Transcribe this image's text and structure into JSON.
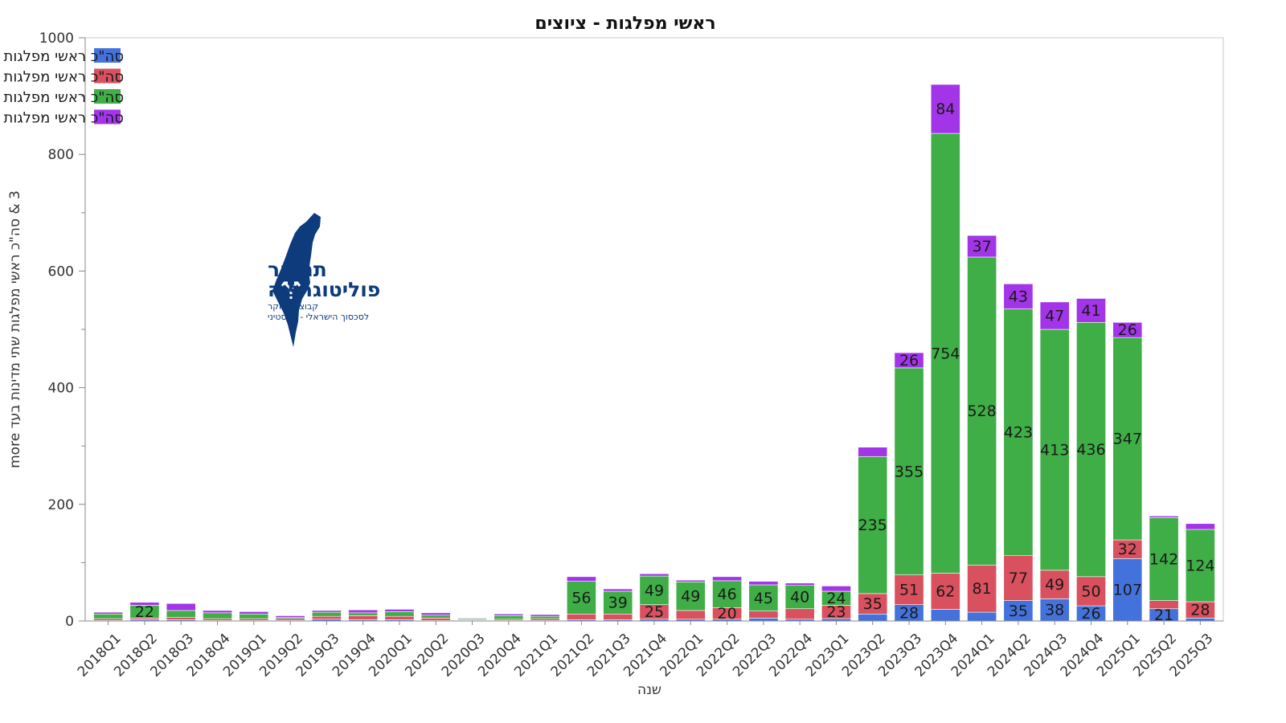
{
  "chart_data": {
    "type": "bar",
    "stacked": true,
    "title": "ראשי מפלגות - ציוצים",
    "xlabel": "שנה",
    "ylabel": "3 & סה\"כ ראשי מפלגות שתי מדינות בעד more",
    "ylim": [
      0,
      1000
    ],
    "yticks": [
      0,
      200,
      400,
      600,
      800,
      1000
    ],
    "grid": false,
    "legend_position": "top-left",
    "categories": [
      "2018Q1",
      "2018Q2",
      "2018Q3",
      "2018Q4",
      "2019Q1",
      "2019Q2",
      "2019Q3",
      "2019Q4",
      "2020Q1",
      "2020Q2",
      "2020Q3",
      "2020Q4",
      "2021Q1",
      "2021Q2",
      "2021Q3",
      "2021Q4",
      "2022Q1",
      "2022Q2",
      "2022Q3",
      "2022Q4",
      "2023Q1",
      "2023Q2",
      "2023Q3",
      "2023Q4",
      "2024Q1",
      "2024Q2",
      "2024Q3",
      "2024Q4",
      "2025Q1",
      "2025Q2",
      "2025Q3"
    ],
    "series": [
      {
        "name": "סה\"כ ראשי מפלגות שתי מדינות בעד",
        "color": "#4472dc",
        "values": [
          1,
          2,
          2,
          1,
          1,
          1,
          3,
          2,
          2,
          1,
          1,
          1,
          1,
          2,
          2,
          3,
          3,
          3,
          5,
          3,
          4,
          12,
          28,
          20,
          15,
          35,
          38,
          26,
          107,
          21,
          5
        ]
      },
      {
        "name": "סה\"כ ראשי מפלגות סיפוח בעד",
        "color": "#d9505e",
        "values": [
          3,
          3,
          4,
          3,
          3,
          3,
          5,
          7,
          6,
          4,
          1,
          2,
          3,
          10,
          10,
          25,
          15,
          20,
          12,
          18,
          23,
          35,
          51,
          62,
          81,
          77,
          49,
          50,
          32,
          14,
          28
        ]
      },
      {
        "name": "סה\"כ ראשי מפלגות סטטוס קוו בעד",
        "color": "#3fae47",
        "values": [
          8,
          22,
          12,
          10,
          8,
          2,
          7,
          5,
          8,
          5,
          2,
          6,
          4,
          56,
          39,
          49,
          49,
          46,
          45,
          40,
          24,
          235,
          355,
          754,
          528,
          423,
          413,
          436,
          347,
          142,
          124
        ]
      },
      {
        "name": "סה\"כ ראשי מפלגות היפרדות בעד",
        "color": "#a335e8",
        "values": [
          3,
          5,
          12,
          4,
          4,
          3,
          3,
          5,
          4,
          4,
          1,
          3,
          3,
          8,
          4,
          4,
          3,
          7,
          6,
          4,
          9,
          16,
          26,
          84,
          37,
          43,
          47,
          41,
          26,
          3,
          10
        ]
      }
    ],
    "data_labels": [
      {
        "series": 2,
        "category": "2018Q2",
        "text": "22"
      },
      {
        "series": 2,
        "category": "2021Q2",
        "text": "56"
      },
      {
        "series": 2,
        "category": "2021Q3",
        "text": "39"
      },
      {
        "series": 1,
        "category": "2021Q4",
        "text": "25"
      },
      {
        "series": 2,
        "category": "2021Q4",
        "text": "49"
      },
      {
        "series": 2,
        "category": "2022Q1",
        "text": "49"
      },
      {
        "series": 1,
        "category": "2022Q2",
        "text": "20"
      },
      {
        "series": 2,
        "category": "2022Q2",
        "text": "46"
      },
      {
        "series": 2,
        "category": "2022Q3",
        "text": "45"
      },
      {
        "series": 2,
        "category": "2022Q4",
        "text": "40"
      },
      {
        "series": 1,
        "category": "2023Q1",
        "text": "23"
      },
      {
        "series": 2,
        "category": "2023Q1",
        "text": "24"
      },
      {
        "series": 1,
        "category": "2023Q2",
        "text": "35"
      },
      {
        "series": 2,
        "category": "2023Q2",
        "text": "235"
      },
      {
        "series": 0,
        "category": "2023Q3",
        "text": "28"
      },
      {
        "series": 1,
        "category": "2023Q3",
        "text": "51"
      },
      {
        "series": 2,
        "category": "2023Q3",
        "text": "355"
      },
      {
        "series": 3,
        "category": "2023Q3",
        "text": "26"
      },
      {
        "series": 1,
        "category": "2023Q4",
        "text": "62"
      },
      {
        "series": 2,
        "category": "2023Q4",
        "text": "754"
      },
      {
        "series": 3,
        "category": "2023Q4",
        "text": "84"
      },
      {
        "series": 1,
        "category": "2024Q1",
        "text": "81"
      },
      {
        "series": 2,
        "category": "2024Q1",
        "text": "528"
      },
      {
        "series": 3,
        "category": "2024Q1",
        "text": "37"
      },
      {
        "series": 0,
        "category": "2024Q2",
        "text": "35"
      },
      {
        "series": 1,
        "category": "2024Q2",
        "text": "77"
      },
      {
        "series": 2,
        "category": "2024Q2",
        "text": "423"
      },
      {
        "series": 3,
        "category": "2024Q2",
        "text": "43"
      },
      {
        "series": 0,
        "category": "2024Q3",
        "text": "38"
      },
      {
        "series": 1,
        "category": "2024Q3",
        "text": "49"
      },
      {
        "series": 2,
        "category": "2024Q3",
        "text": "413"
      },
      {
        "series": 3,
        "category": "2024Q3",
        "text": "47"
      },
      {
        "series": 0,
        "category": "2024Q4",
        "text": "26"
      },
      {
        "series": 1,
        "category": "2024Q4",
        "text": "50"
      },
      {
        "series": 2,
        "category": "2024Q4",
        "text": "436"
      },
      {
        "series": 3,
        "category": "2024Q4",
        "text": "41"
      },
      {
        "series": 0,
        "category": "2025Q1",
        "text": "107"
      },
      {
        "series": 1,
        "category": "2025Q1",
        "text": "32"
      },
      {
        "series": 2,
        "category": "2025Q1",
        "text": "347"
      },
      {
        "series": 3,
        "category": "2025Q1",
        "text": "26"
      },
      {
        "series": 0,
        "category": "2025Q2",
        "text": "21"
      },
      {
        "series": 2,
        "category": "2025Q2",
        "text": "142"
      },
      {
        "series": 1,
        "category": "2025Q3",
        "text": "28"
      },
      {
        "series": 2,
        "category": "2025Q3",
        "text": "124"
      }
    ]
  },
  "logo": {
    "line1": "תמרור",
    "line2": "פוליטוגרפיה",
    "line3": "קבוצת מחקר",
    "line4": "לסכסוך הישראלי - פלסטיני",
    "color": "#0d3b7c"
  }
}
